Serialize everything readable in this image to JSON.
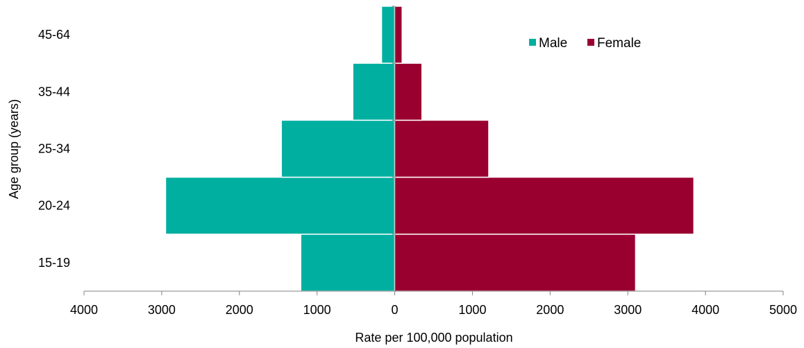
{
  "chart_data": {
    "type": "bar",
    "orientation": "horizontal",
    "layout": "population-pyramid",
    "categories": [
      "15-19",
      "20-24",
      "25-34",
      "35-44",
      "45-64"
    ],
    "series": [
      {
        "name": "Male",
        "values": [
          1210,
          2950,
          1460,
          540,
          170
        ],
        "color": "#00AFA0",
        "side": "left"
      },
      {
        "name": "Female",
        "values": [
          3100,
          3850,
          1210,
          350,
          95
        ],
        "color": "#990030",
        "side": "right"
      }
    ],
    "x_ticks": [
      "4000",
      "3000",
      "2000",
      "1000",
      "0",
      "1000",
      "2000",
      "3000",
      "4000",
      "5000"
    ],
    "xlim": [
      -4000,
      5000
    ],
    "xlabel": "Rate per 100,000 population",
    "ylabel": "Age group (years)",
    "title": "",
    "grid": false,
    "legend_position": "top-right"
  }
}
